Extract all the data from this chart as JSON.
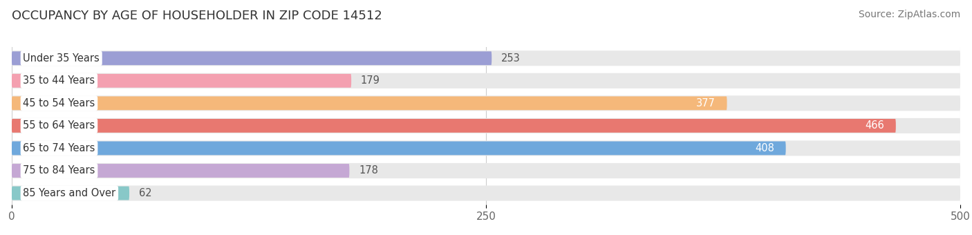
{
  "title": "OCCUPANCY BY AGE OF HOUSEHOLDER IN ZIP CODE 14512",
  "source": "Source: ZipAtlas.com",
  "categories": [
    "Under 35 Years",
    "35 to 44 Years",
    "45 to 54 Years",
    "55 to 64 Years",
    "65 to 74 Years",
    "75 to 84 Years",
    "85 Years and Over"
  ],
  "values": [
    253,
    179,
    377,
    466,
    408,
    178,
    62
  ],
  "bar_colors": [
    "#9b9ed4",
    "#f4a0b0",
    "#f5b87a",
    "#e87870",
    "#6fa8dc",
    "#c5a8d4",
    "#88c8c8"
  ],
  "bar_bg_color": "#e8e8e8",
  "xlim": [
    0,
    500
  ],
  "xticks": [
    0,
    250,
    500
  ],
  "bar_height": 0.68,
  "background_color": "#ffffff",
  "title_fontsize": 13,
  "source_fontsize": 10,
  "label_fontsize": 10.5,
  "value_fontsize": 10.5,
  "tick_fontsize": 11,
  "value_threshold": 300,
  "fig_width": 14.06,
  "fig_height": 3.4,
  "dpi": 100
}
